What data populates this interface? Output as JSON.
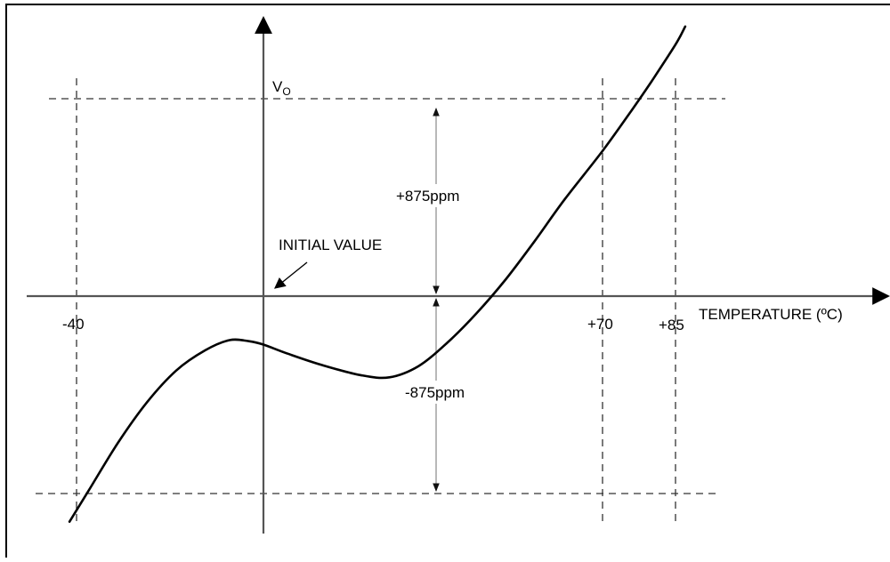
{
  "chart_data": {
    "type": "line",
    "title": "",
    "xlabel": "TEMPERATURE (ºC)",
    "ylabel": {
      "main": "V",
      "subscript": "O"
    },
    "x_ticks": [
      "-40",
      "+70",
      "+85"
    ],
    "annotations": {
      "initial_value": "INITIAL VALUE",
      "upper_band": "+875ppm",
      "lower_band": "-875ppm"
    },
    "y_limits_ppm": [
      -875,
      875
    ],
    "x": [
      -40,
      -36,
      -30,
      -24,
      -18,
      -12,
      -7,
      -3,
      0,
      5,
      12,
      20,
      26,
      32,
      38,
      44,
      50,
      56,
      62,
      70,
      76,
      80,
      85,
      87
    ],
    "y": [
      -1000,
      -860,
      -650,
      -470,
      -330,
      -240,
      -195,
      -200,
      -215,
      -255,
      -305,
      -350,
      -360,
      -310,
      -205,
      -75,
      75,
      245,
      425,
      645,
      825,
      950,
      1115,
      1195
    ],
    "colors": {
      "curve": "#000000",
      "axis": "#000000",
      "guide": "#000000"
    }
  }
}
